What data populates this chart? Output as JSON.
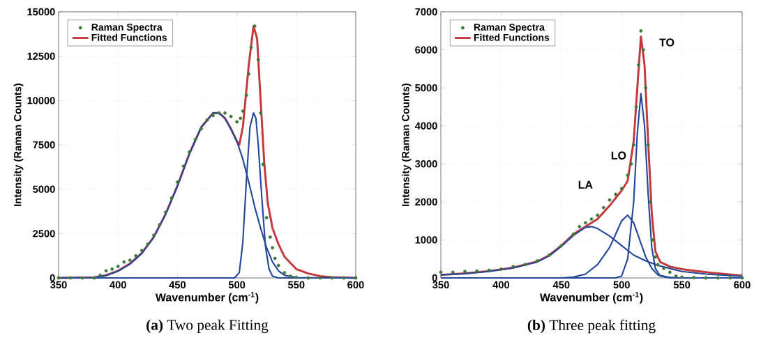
{
  "chart_data": [
    {
      "type": "line",
      "title": "**(a)** Two peak Fitting",
      "xlabel": "Wavenumber (cm$^{-1}$)",
      "ylabel": "Intensity (Raman Counts)",
      "xlim": [
        350,
        600
      ],
      "xticks": [
        350,
        400,
        450,
        500,
        550,
        600
      ],
      "ylim": [
        0,
        15000
      ],
      "yticks": [
        0,
        2500,
        5000,
        7500,
        10000,
        12500,
        15000
      ],
      "grid": true,
      "legend": "top left",
      "series": [
        {
          "name": "Raman Spectra",
          "type": "scatter",
          "marker": "circle",
          "color": "#3d7a3a",
          "x": [
            350,
            360,
            370,
            380,
            385,
            390,
            395,
            400,
            405,
            410,
            415,
            420,
            425,
            430,
            435,
            440,
            445,
            450,
            455,
            460,
            465,
            470,
            475,
            480,
            485,
            490,
            495,
            500,
            503,
            505,
            508,
            510,
            512,
            515,
            518,
            520,
            522,
            525,
            528,
            530,
            532,
            535,
            540,
            545,
            550,
            560,
            570,
            580,
            590,
            600
          ],
          "values": [
            0,
            0,
            0,
            0,
            150,
            400,
            500,
            650,
            900,
            1000,
            1250,
            1550,
            1900,
            2400,
            3000,
            3700,
            4500,
            5400,
            6300,
            7100,
            7800,
            8400,
            8900,
            9150,
            9300,
            9300,
            9100,
            8800,
            9000,
            9400,
            10300,
            11500,
            13000,
            14200,
            12300,
            9300,
            6400,
            3400,
            2300,
            1700,
            1100,
            700,
            300,
            100,
            30,
            0,
            0,
            0,
            0,
            0
          ]
        },
        {
          "name": "Fitted Functions",
          "marker": "none",
          "color": "#c4373a",
          "x": [
            350,
            380,
            390,
            400,
            410,
            420,
            430,
            440,
            450,
            460,
            470,
            480,
            485,
            490,
            495,
            500,
            502,
            505,
            510,
            514,
            517,
            520,
            523,
            526,
            530,
            535,
            540,
            550,
            560,
            570,
            580,
            600
          ],
          "values": [
            0,
            30,
            150,
            400,
            800,
            1400,
            2300,
            3600,
            5200,
            7000,
            8500,
            9300,
            9300,
            9000,
            8400,
            7700,
            7500,
            8500,
            12000,
            14200,
            13500,
            10000,
            6500,
            4200,
            2800,
            1900,
            1200,
            500,
            250,
            100,
            40,
            0
          ]
        },
        {
          "type": "line",
          "marker": "none",
          "color": "#24479a",
          "x": [
            350,
            380,
            390,
            400,
            410,
            420,
            430,
            440,
            450,
            460,
            470,
            480,
            485,
            490,
            495,
            500,
            505,
            510,
            515,
            520,
            525,
            530,
            535,
            540,
            550,
            600
          ],
          "values": [
            0,
            20,
            130,
            380,
            780,
            1380,
            2280,
            3580,
            5180,
            6980,
            8480,
            9280,
            9300,
            9000,
            8400,
            7700,
            6700,
            5400,
            4000,
            2800,
            1700,
            900,
            400,
            150,
            20,
            0
          ]
        },
        {
          "type": "line",
          "marker": "none",
          "color": "#24479a",
          "x": [
            350,
            498,
            502,
            505,
            508,
            511,
            514,
            516,
            518,
            521,
            524,
            527,
            530,
            535,
            600
          ],
          "values": [
            0,
            0,
            300,
            2000,
            5500,
            8500,
            9300,
            9000,
            7500,
            4500,
            1800,
            500,
            100,
            0,
            0
          ]
        }
      ]
    },
    {
      "type": "line",
      "title": "**(b)** Three peak fitting",
      "xlabel": "Wavenumber (cm$^{-1}$)",
      "ylabel": "Intensity (Raman Counts)",
      "xlim": [
        350,
        600
      ],
      "xticks": [
        350,
        400,
        450,
        500,
        550,
        600
      ],
      "ylim": [
        0,
        7000
      ],
      "yticks": [
        0,
        1000,
        2000,
        3000,
        4000,
        5000,
        6000,
        7000
      ],
      "grid": true,
      "legend": "top left",
      "annotations": [
        "LA",
        "LO",
        "TO"
      ],
      "series": [
        {
          "name": "Raman Spectra",
          "type": "scatter",
          "marker": "circle",
          "color": "#3d7a3a",
          "x": [
            350,
            360,
            370,
            380,
            390,
            400,
            410,
            420,
            430,
            440,
            450,
            460,
            465,
            470,
            475,
            480,
            485,
            490,
            495,
            500,
            505,
            508,
            510,
            512,
            514,
            516,
            518,
            520,
            522,
            524,
            526,
            528,
            530,
            535,
            540,
            545,
            550,
            560,
            570,
            580,
            590,
            600
          ],
          "values": [
            150,
            150,
            170,
            180,
            200,
            230,
            300,
            350,
            450,
            600,
            850,
            1150,
            1350,
            1450,
            1550,
            1650,
            1850,
            2050,
            2200,
            2350,
            2700,
            3000,
            3500,
            4500,
            5600,
            6500,
            6000,
            5000,
            3500,
            2000,
            1000,
            550,
            350,
            250,
            150,
            50,
            20,
            10,
            0,
            0,
            0,
            0
          ]
        },
        {
          "name": "Fitted Functions",
          "marker": "none",
          "color": "#c4373a",
          "x": [
            350,
            370,
            390,
            410,
            430,
            440,
            450,
            460,
            470,
            480,
            490,
            500,
            505,
            510,
            513,
            516,
            519,
            522,
            525,
            528,
            532,
            540,
            550,
            570,
            600
          ],
          "values": [
            80,
            120,
            180,
            270,
            430,
            600,
            850,
            1150,
            1350,
            1550,
            1900,
            2300,
            2550,
            3600,
            5000,
            6350,
            5600,
            3600,
            1700,
            700,
            420,
            300,
            230,
            150,
            60
          ]
        },
        {
          "type": "line",
          "marker": "none",
          "color": "#24479a",
          "x": [
            350,
            370,
            390,
            410,
            430,
            440,
            450,
            460,
            470,
            475,
            480,
            490,
            500,
            510,
            520,
            530,
            540,
            550,
            570,
            600
          ],
          "values": [
            80,
            110,
            170,
            260,
            420,
            580,
            830,
            1120,
            1330,
            1350,
            1300,
            1100,
            850,
            600,
            450,
            330,
            250,
            170,
            100,
            40
          ]
        },
        {
          "type": "line",
          "marker": "none",
          "color": "#24479a",
          "x": [
            350,
            450,
            460,
            470,
            480,
            490,
            495,
            500,
            505,
            510,
            515,
            520,
            525,
            530,
            540,
            550,
            600
          ],
          "values": [
            0,
            0,
            20,
            100,
            350,
            800,
            1150,
            1500,
            1650,
            1450,
            1000,
            550,
            250,
            80,
            10,
            0,
            0
          ]
        },
        {
          "type": "line",
          "marker": "none",
          "color": "#24479a",
          "x": [
            350,
            495,
            500,
            505,
            510,
            513,
            516,
            519,
            522,
            525,
            528,
            532,
            540,
            600
          ],
          "values": [
            0,
            0,
            50,
            500,
            2000,
            3800,
            4850,
            4000,
            2200,
            800,
            250,
            50,
            0,
            0
          ]
        }
      ]
    }
  ]
}
